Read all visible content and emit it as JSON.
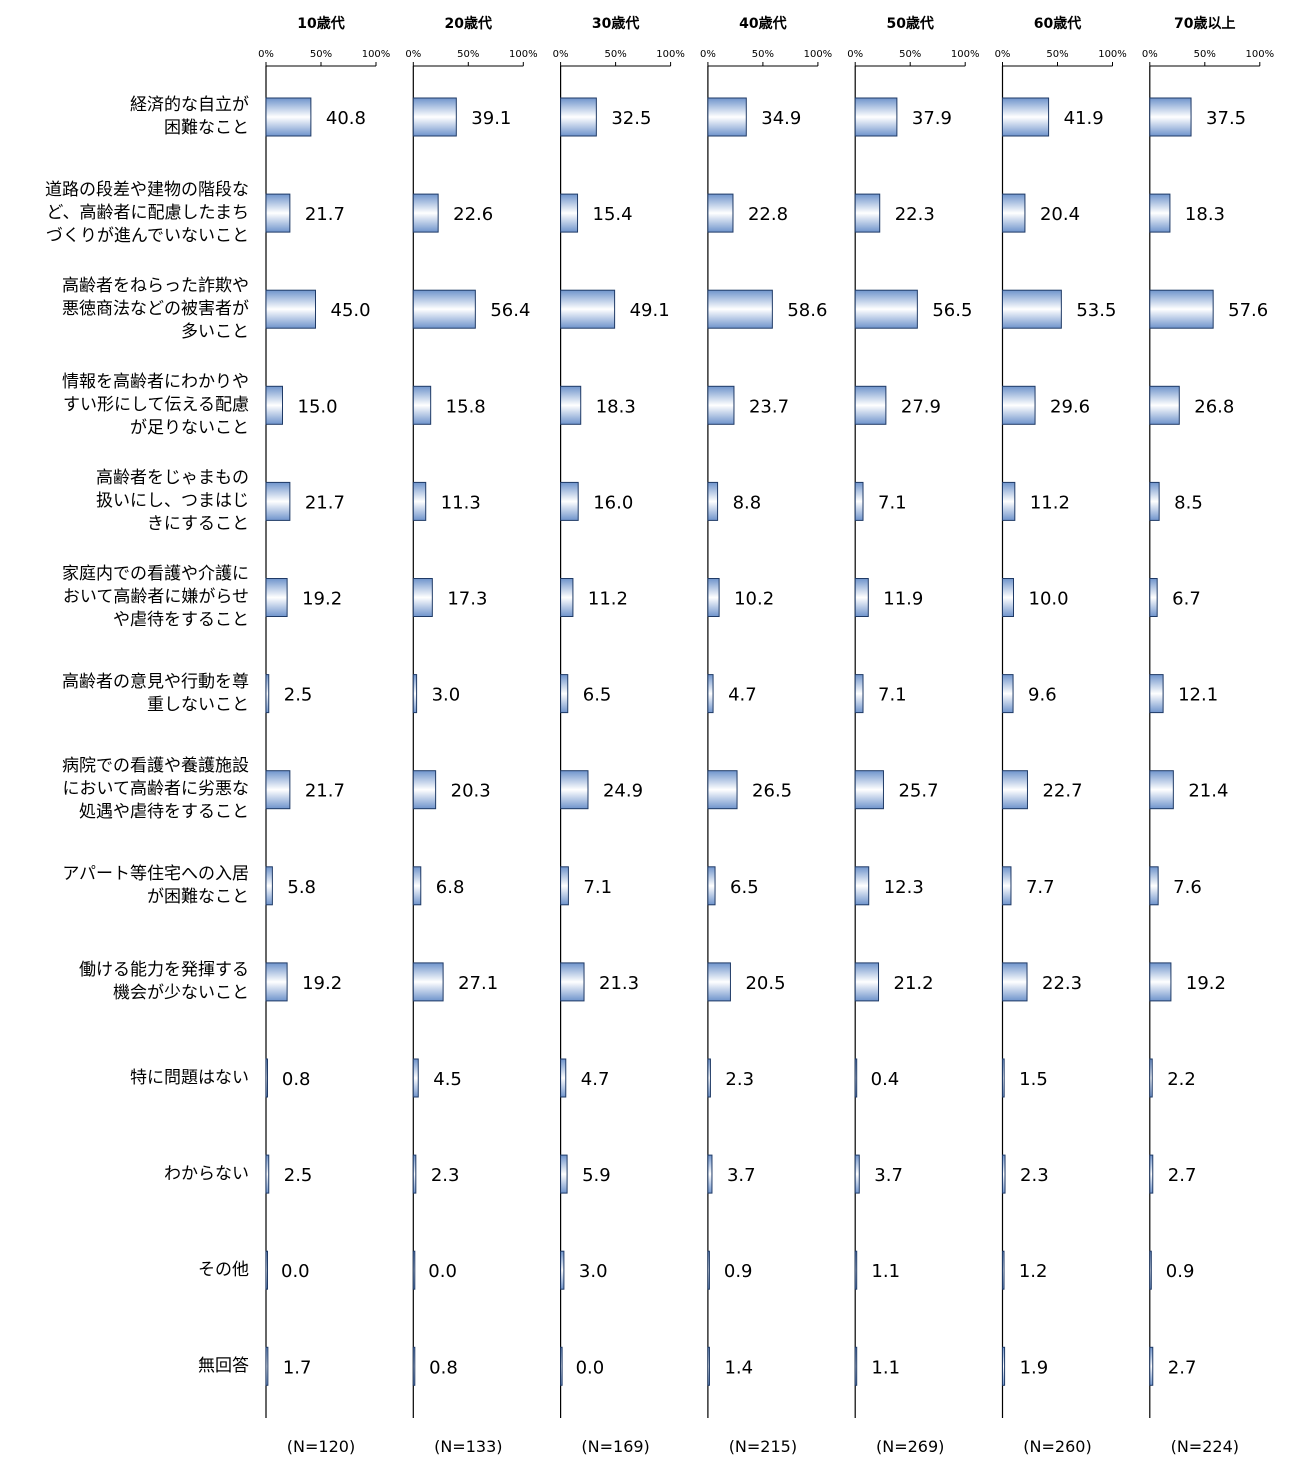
{
  "chart_data": {
    "type": "bar",
    "orientation": "horizontal",
    "xlim": [
      0,
      100
    ],
    "x_ticks": [
      "0%",
      "50%",
      "100%"
    ],
    "categories": [
      "経済的な自立が\n困難なこと",
      "道路の段差や建物の階段な\nど、高齢者に配慮したまち\nづくりが進んでいないこと",
      "高齢者をねらった詐欺や\n悪徳商法などの被害者が\n多いこと",
      "情報を高齢者にわかりや\nすい形にして伝える配慮\nが足りないこと",
      "高齢者をじゃまもの\n扱いにし、つまはじ\nきにすること",
      "家庭内での看護や介護に\nおいて高齢者に嫌がらせ\nや虐待をすること",
      "高齢者の意見や行動を尊\n重しないこと",
      "病院での看護や養護施設\nにおいて高齢者に劣悪な\n処遇や虐待をすること",
      "アパート等住宅への入居\nが困難なこと",
      "働ける能力を発揮する\n機会が少ないこと",
      "特に問題はない",
      "わからない",
      "その他",
      "無回答"
    ],
    "series": [
      {
        "name": "10歳代",
        "n": "(N=120)",
        "values": [
          40.8,
          21.7,
          45.0,
          15.0,
          21.7,
          19.2,
          2.5,
          21.7,
          5.8,
          19.2,
          0.8,
          2.5,
          0.0,
          1.7
        ],
        "labels": [
          "40.8",
          "21.7",
          "45.0",
          "15.0",
          "21.7",
          "19.2",
          "2.5",
          "21.7",
          "5.8",
          "19.2",
          "0.8",
          "2.5",
          "0.0",
          "1.7"
        ]
      },
      {
        "name": "20歳代",
        "n": "(N=133)",
        "values": [
          39.1,
          22.6,
          56.4,
          15.8,
          11.3,
          17.3,
          3.0,
          20.3,
          6.8,
          27.1,
          4.5,
          2.3,
          0.0,
          0.8
        ],
        "labels": [
          "39.1",
          "22.6",
          "56.4",
          "15.8",
          "11.3",
          "17.3",
          "3.0",
          "20.3",
          "6.8",
          "27.1",
          "4.5",
          "2.3",
          "0.0",
          "0.8"
        ]
      },
      {
        "name": "30歳代",
        "n": "(N=169)",
        "values": [
          32.5,
          15.4,
          49.1,
          18.3,
          16.0,
          11.2,
          6.5,
          24.9,
          7.1,
          21.3,
          4.7,
          5.9,
          3.0,
          0.0
        ],
        "labels": [
          "32.5",
          "15.4",
          "49.1",
          "18.3",
          "16.0",
          "11.2",
          "6.5",
          "24.9",
          "7.1",
          "21.3",
          "4.7",
          "5.9",
          "3.0",
          "0.0"
        ]
      },
      {
        "name": "40歳代",
        "n": "(N=215)",
        "values": [
          34.9,
          22.8,
          58.6,
          23.7,
          8.8,
          10.2,
          4.7,
          26.5,
          6.5,
          20.5,
          2.3,
          3.7,
          0.9,
          1.4
        ],
        "labels": [
          "34.9",
          "22.8",
          "58.6",
          "23.7",
          "8.8",
          "10.2",
          "4.7",
          "26.5",
          "6.5",
          "20.5",
          "2.3",
          "3.7",
          "0.9",
          "1.4"
        ]
      },
      {
        "name": "50歳代",
        "n": "(N=269)",
        "values": [
          37.9,
          22.3,
          56.5,
          27.9,
          7.1,
          11.9,
          7.1,
          25.7,
          12.3,
          21.2,
          0.4,
          3.7,
          1.1,
          1.1
        ],
        "labels": [
          "37.9",
          "22.3",
          "56.5",
          "27.9",
          "7.1",
          "11.9",
          "7.1",
          "25.7",
          "12.3",
          "21.2",
          "0.4",
          "3.7",
          "1.1",
          "1.1"
        ]
      },
      {
        "name": "60歳代",
        "n": "(N=260)",
        "values": [
          41.9,
          20.4,
          53.5,
          29.6,
          11.2,
          10.0,
          9.6,
          22.7,
          7.7,
          22.3,
          1.5,
          2.3,
          1.2,
          1.9
        ],
        "labels": [
          "41.9",
          "20.4",
          "53.5",
          "29.6",
          "11.2",
          "10.0",
          "9.6",
          "22.7",
          "7.7",
          "22.3",
          "1.5",
          "2.3",
          "1.2",
          "1.9"
        ]
      },
      {
        "name": "70歳以上",
        "n": "(N=224)",
        "values": [
          37.5,
          18.3,
          57.6,
          26.8,
          8.5,
          6.7,
          12.1,
          21.4,
          7.6,
          19.2,
          2.2,
          2.7,
          0.9,
          2.7
        ],
        "labels": [
          "37.5",
          "18.3",
          "57.6",
          "26.8",
          "8.5",
          "6.7",
          "12.1",
          "21.4",
          "7.6",
          "19.2",
          "2.2",
          "2.7",
          "0.9",
          "2.7"
        ]
      }
    ],
    "colors": {
      "bar_edge": "#1f3a66",
      "bar_light": "#ffffff",
      "bar_dark": "#6f94cc"
    },
    "grid": false,
    "legend": "none"
  }
}
